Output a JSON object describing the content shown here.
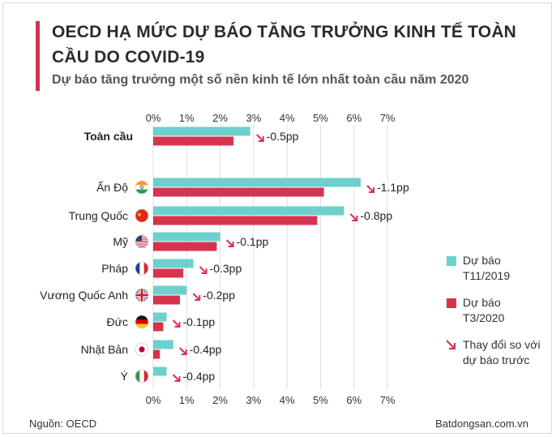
{
  "header": {
    "title": "OECD HẠ MỨC DỰ BÁO TĂNG TRƯỞNG KINH TẾ TOÀN CẦU DO COVID-19",
    "subtitle": "Dự báo tăng trưởng một số nền kinh tế lớn nhất toàn cầu năm 2020"
  },
  "colors": {
    "nov2019": "#6dd0cc",
    "mar2020": "#d6334f",
    "accent": "#d6334f"
  },
  "legend": {
    "nov2019": "Dự báo T11/2019",
    "mar2020": "Dự báo T3/2020",
    "change": "Thay đổi so với dự báo trước"
  },
  "footer": {
    "source": "Nguồn: OECD",
    "site": "Batdongsan.com.vn"
  },
  "chart_data": {
    "type": "bar",
    "orientation": "horizontal",
    "categories": [
      "Toàn cầu",
      "Ấn Độ",
      "Trung Quốc",
      "Mỹ",
      "Pháp",
      "Vương Quốc Anh",
      "Đức",
      "Nhật Bản",
      "Ý"
    ],
    "flags": [
      "",
      "india-flag-icon",
      "china-flag-icon",
      "usa-flag-icon",
      "france-flag-icon",
      "uk-flag-icon",
      "germany-flag-icon",
      "japan-flag-icon",
      "italy-flag-icon"
    ],
    "series": [
      {
        "name": "Dự báo T11/2019",
        "values": [
          2.9,
          6.2,
          5.7,
          2.0,
          1.2,
          1.0,
          0.4,
          0.6,
          0.4
        ]
      },
      {
        "name": "Dự báo T3/2020",
        "values": [
          2.4,
          5.1,
          4.9,
          1.9,
          0.9,
          0.8,
          0.3,
          0.2,
          0.0
        ]
      }
    ],
    "change_labels": [
      "-0.5pp",
      "-1.1pp",
      "-0.8pp",
      "-0.1pp",
      "-0.3pp",
      "-0.2pp",
      "-0.1pp",
      "-0.4pp",
      "-0.4pp"
    ],
    "xticks": [
      "0%",
      "1%",
      "2%",
      "3%",
      "4%",
      "5%",
      "6%",
      "7%"
    ],
    "xlim": [
      0,
      7
    ],
    "grid": true
  }
}
